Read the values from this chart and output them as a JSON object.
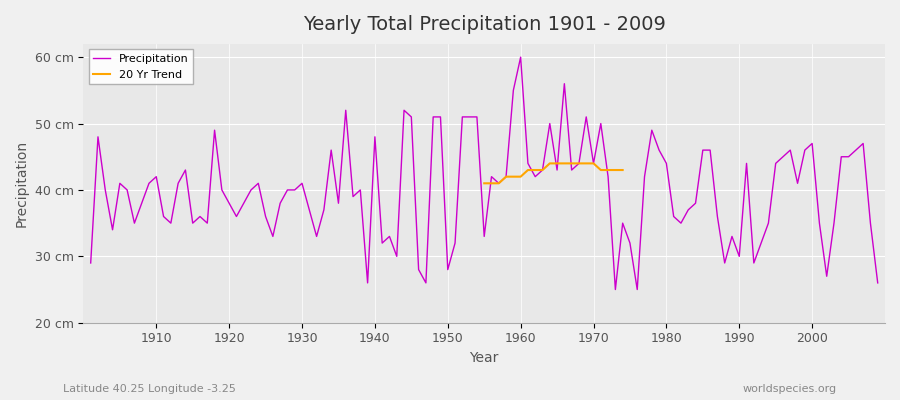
{
  "title": "Yearly Total Precipitation 1901 - 2009",
  "xlabel": "Year",
  "ylabel": "Precipitation",
  "subtitle": "Latitude 40.25 Longitude -3.25",
  "watermark": "worldspecies.org",
  "ylim": [
    20,
    62
  ],
  "yticks": [
    20,
    30,
    40,
    50,
    60
  ],
  "ytick_labels": [
    "20 cm",
    "30 cm",
    "40 cm",
    "50 cm",
    "60 cm"
  ],
  "xlim": [
    1900,
    2010
  ],
  "bg_color": "#e8e8e8",
  "plot_color": "#cc00cc",
  "trend_color": "#ffa500",
  "years": [
    1901,
    1902,
    1903,
    1904,
    1905,
    1906,
    1907,
    1908,
    1909,
    1910,
    1911,
    1912,
    1913,
    1914,
    1915,
    1916,
    1917,
    1918,
    1919,
    1920,
    1921,
    1922,
    1923,
    1924,
    1925,
    1926,
    1927,
    1928,
    1929,
    1930,
    1931,
    1932,
    1933,
    1934,
    1935,
    1936,
    1937,
    1938,
    1939,
    1940,
    1941,
    1942,
    1943,
    1944,
    1945,
    1946,
    1947,
    1948,
    1949,
    1950,
    1951,
    1952,
    1953,
    1954,
    1955,
    1956,
    1957,
    1958,
    1959,
    1960,
    1961,
    1962,
    1963,
    1964,
    1965,
    1966,
    1967,
    1968,
    1969,
    1970,
    1971,
    1972,
    1973,
    1974,
    1975,
    1976,
    1977,
    1978,
    1979,
    1980,
    1981,
    1982,
    1983,
    1984,
    1985,
    1986,
    1987,
    1988,
    1989,
    1990,
    1991,
    1992,
    1993,
    1994,
    1995,
    1996,
    1997,
    1998,
    1999,
    2000,
    2001,
    2002,
    2003,
    2004,
    2005,
    2006,
    2007,
    2008,
    2009
  ],
  "precip": [
    29,
    48,
    40,
    34,
    41,
    40,
    35,
    38,
    41,
    42,
    36,
    35,
    41,
    43,
    35,
    36,
    35,
    49,
    40,
    38,
    36,
    38,
    40,
    41,
    36,
    33,
    38,
    40,
    40,
    41,
    37,
    33,
    37,
    46,
    38,
    52,
    39,
    40,
    26,
    48,
    32,
    33,
    30,
    52,
    51,
    28,
    26,
    51,
    51,
    28,
    32,
    51,
    51,
    51,
    33,
    42,
    41,
    42,
    55,
    60,
    44,
    42,
    43,
    50,
    43,
    56,
    43,
    44,
    51,
    44,
    50,
    42,
    25,
    35,
    32,
    25,
    42,
    49,
    46,
    44,
    36,
    35,
    37,
    38,
    46,
    46,
    36,
    29,
    33,
    30,
    44,
    29,
    32,
    35,
    44,
    45,
    46,
    41,
    46,
    47,
    35,
    27,
    35,
    45,
    45,
    46,
    47,
    35,
    26
  ],
  "trend_years": [
    1955,
    1956,
    1957,
    1958,
    1959,
    1960,
    1961,
    1962,
    1963,
    1964,
    1965,
    1966,
    1967,
    1968,
    1969,
    1970,
    1971,
    1972,
    1973,
    1974
  ],
  "trend_values": [
    41,
    41,
    41,
    42,
    42,
    42,
    43,
    43,
    43,
    44,
    44,
    44,
    44,
    44,
    44,
    44,
    43,
    43,
    43,
    43
  ]
}
